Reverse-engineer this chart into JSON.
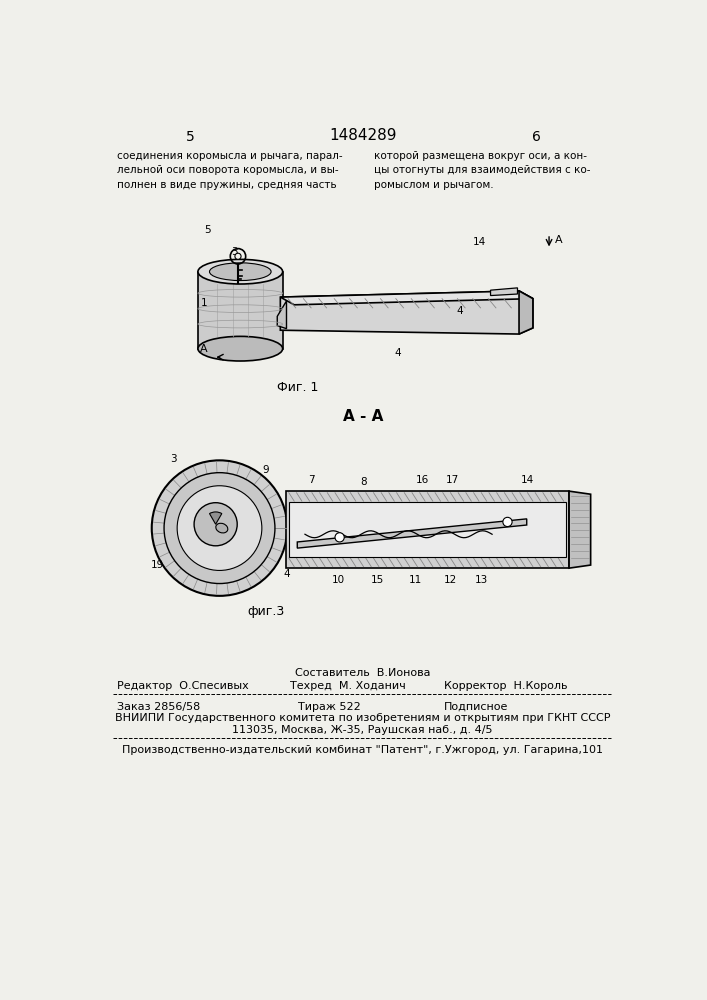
{
  "bg_color": "#f0f0eb",
  "header": {
    "left_num": "5",
    "center_num": "1484289",
    "right_num": "6",
    "left_text": "соединения коромысла и рычага, парал-\nлельной оси поворота коромысла, и вы-\nполнен в виде пружины, средняя часть",
    "right_text": "которой размещена вокруг оси, а кон-\nцы отогнуты для взаимодействия с ко-\nромыслом и рычагом."
  },
  "fig1_caption": "Фиг. 1",
  "fig3_caption": "фиг.3",
  "section_aa": "А - А",
  "footer": {
    "col1_line1": "Составитель  В.Ионова",
    "col1_line2": "Редактор  О.Спесивых",
    "col2_line2": "Техред  М. Ходанич",
    "col3_line2": "Корректор  Н.Король",
    "line3a": "Заказ 2856/58",
    "line3b": "Тираж 522",
    "line3c": "Подписное",
    "line4": "ВНИИПИ Государственного комитета по изобретениям и открытиям при ГКНТ СССР",
    "line5": "113035, Москва, Ж-35, Раушская наб., д. 4/5",
    "line6": "Производственно-издательский комбинат \"Патент\", г.Ужгород, ул. Гагарина,101"
  }
}
